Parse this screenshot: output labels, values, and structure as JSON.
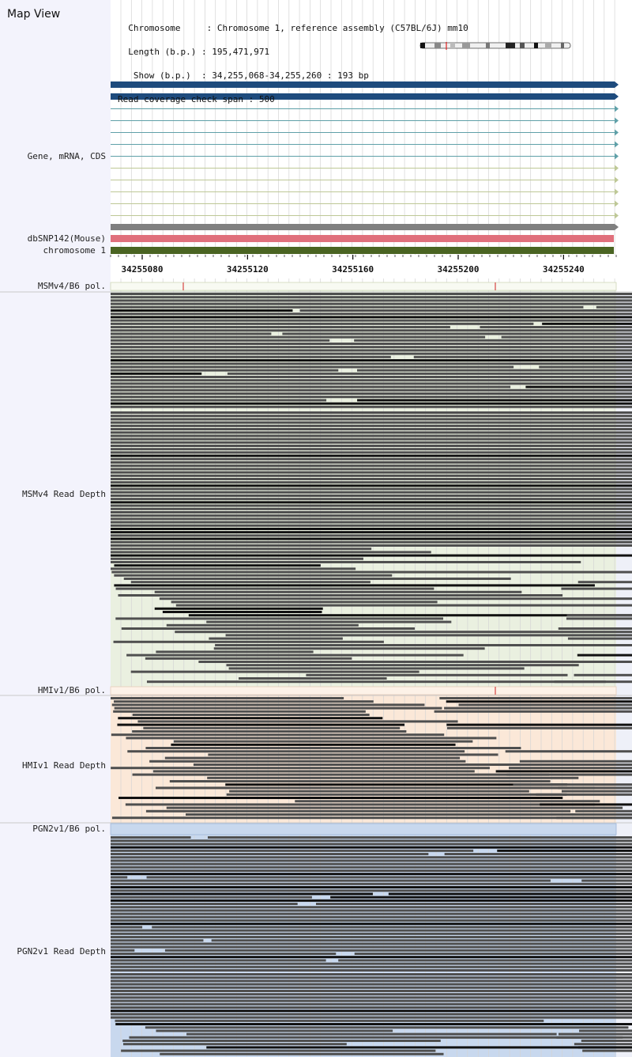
{
  "header": {
    "title": "Map View",
    "rows": [
      {
        "key": "  Chromosome     ",
        "value": ": Chromosome 1, reference assembly (C57BL/6J) mm10"
      },
      {
        "key": "  Length (b.p.) ",
        "value": ": 195,471,971"
      },
      {
        "key": "   Show (b.p.)  ",
        "value": ": 34,255,068-34,255,260 : 193 bp"
      },
      {
        "key": "Read coverage check span ",
        "value": ": 500"
      }
    ]
  },
  "tracks": {
    "gene": "Gene, mRNA, CDS",
    "dbsnp": "dbSNP142(Mouse)",
    "chromosome": "chromosome 1",
    "msm_pol": "MSMv4/B6 pol.",
    "msm_depth": "MSMv4 Read Depth",
    "hmi_pol": "HMIv1/B6 pol.",
    "hmi_depth": "HMIv1 Read Depth",
    "pgn_pol": "PGN2v1/B6 pol.",
    "pgn_depth": "PGN2v1 Read Depth"
  },
  "ruler": {
    "range": [
      34255068,
      34255260
    ],
    "ticks": [
      "34255080",
      "34255120",
      "34255160",
      "34255200",
      "34255240"
    ]
  },
  "colors": {
    "gene_dark": "#1e4b7d",
    "mrna_teal": "#5fa0a8",
    "cds_olive": "#bec896",
    "dbsnp": "#e0707c",
    "chromosome": "#4a6422",
    "msm_bg": "#eaf0e0",
    "hmi_bg": "#fbe8d8",
    "pgn_bg": "#c8d8ee",
    "read": "#4f4f4f",
    "read_dark": "#111111"
  }
}
